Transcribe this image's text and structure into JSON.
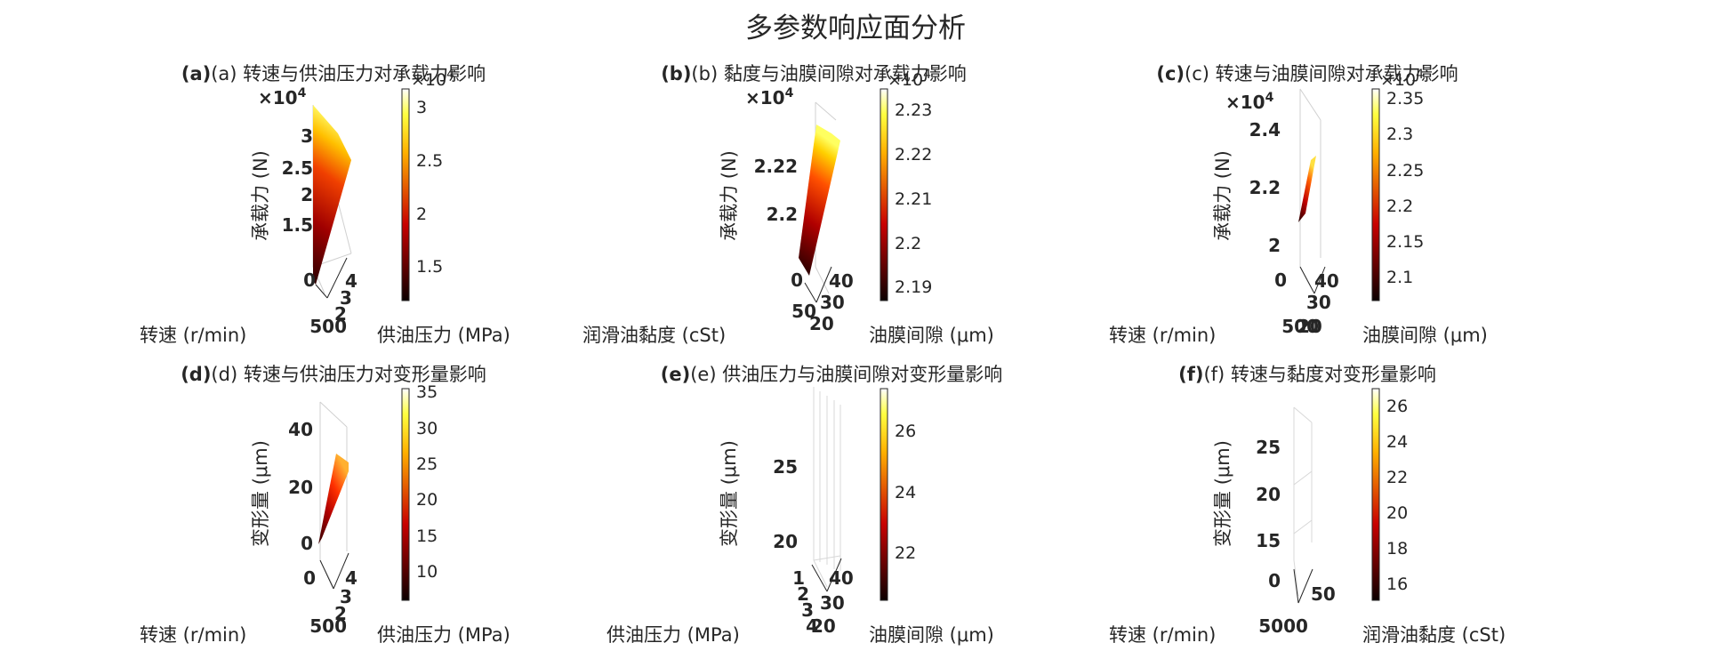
{
  "figure_title": "多参数响应面分析",
  "chart_data": [
    {
      "type": "surface3d",
      "title": "(a) 转速与供油压力对承载力影响",
      "xlabel": "转速 (r/min)",
      "ylabel": "供油压力 (MPa)",
      "zlabel": "承载力 (N)",
      "z_exponent": "×10^4",
      "x_ticks": [
        "0",
        "500"
      ],
      "y_ticks": [
        "2",
        "3",
        "4"
      ],
      "z_ticks": [
        "1.5",
        "2",
        "2.5",
        "3"
      ],
      "colorbar_ticks": [
        "1.5",
        "2",
        "2.5",
        "3"
      ],
      "colorbar_exponent": "×10^4",
      "colorbar_range": [
        1.15,
        3.15
      ],
      "colormap": "hot"
    },
    {
      "type": "surface3d",
      "title": "(b) 黏度与油膜间隙对承载力影响",
      "xlabel": "润滑油黏度 (cSt)",
      "ylabel": "油膜间隙 (μm)",
      "zlabel": "承载力 (N)",
      "z_exponent": "×10^4",
      "x_ticks": [
        "0",
        "50"
      ],
      "y_ticks": [
        "20",
        "30",
        "40"
      ],
      "z_ticks": [
        "2.2",
        "2.22"
      ],
      "colorbar_ticks": [
        "2.19",
        "2.2",
        "2.21",
        "2.22",
        "2.23"
      ],
      "colorbar_exponent": "×10^4",
      "colorbar_range": [
        2.187,
        2.234
      ],
      "colormap": "hot"
    },
    {
      "type": "surface3d",
      "title": "(c) 转速与油膜间隙对承载力影响",
      "xlabel": "转速 (r/min)",
      "ylabel": "油膜间隙 (μm)",
      "zlabel": "承载力 (N)",
      "z_exponent": "×10^4",
      "x_ticks": [
        "0",
        "500"
      ],
      "y_ticks": [
        "20",
        "30",
        "40"
      ],
      "z_ticks": [
        "2",
        "2.2",
        "2.4"
      ],
      "colorbar_ticks": [
        "2.1",
        "2.15",
        "2.2",
        "2.25",
        "2.3",
        "2.35"
      ],
      "colorbar_exponent": "×10^4",
      "colorbar_range": [
        2.06,
        2.36
      ],
      "colormap": "hot"
    },
    {
      "type": "surface3d",
      "title": "(d) 转速与供油压力对变形量影响",
      "xlabel": "转速 (r/min)",
      "ylabel": "供油压力 (MPa)",
      "zlabel": "变形量 (μm)",
      "x_ticks": [
        "0",
        "500"
      ],
      "y_ticks": [
        "2",
        "3",
        "4"
      ],
      "z_ticks": [
        "0",
        "20",
        "40"
      ],
      "colorbar_ticks": [
        "10",
        "15",
        "20",
        "25",
        "30",
        "35"
      ],
      "colorbar_range": [
        6,
        35.5
      ],
      "colormap": "hot"
    },
    {
      "type": "surface3d",
      "title": "(e) 供油压力与油膜间隙对变形量影响",
      "xlabel": "供油压力 (MPa)",
      "ylabel": "油膜间隙 (μm)",
      "zlabel": "变形量 (μm)",
      "x_ticks": [
        "1",
        "2",
        "3",
        "4"
      ],
      "y_ticks": [
        "20",
        "30",
        "40"
      ],
      "z_ticks": [
        "20",
        "25"
      ],
      "colorbar_ticks": [
        "22",
        "24",
        "26"
      ],
      "colorbar_range": [
        20.5,
        27.5
      ],
      "colormap": "hot"
    },
    {
      "type": "surface3d",
      "title": "(f) 转速与黏度对变形量影响",
      "xlabel": "转速 (r/min)",
      "ylabel": "润滑油黏度 (cSt)",
      "zlabel": "变形量 (μm)",
      "x_ticks": [
        "0",
        "500"
      ],
      "y_ticks": [
        "0",
        "50"
      ],
      "z_ticks": [
        "0",
        "15",
        "20",
        "25"
      ],
      "colorbar_ticks": [
        "16",
        "18",
        "20",
        "22",
        "24",
        "26"
      ],
      "colorbar_range": [
        14.8,
        26.8
      ],
      "colormap": "hot"
    }
  ]
}
